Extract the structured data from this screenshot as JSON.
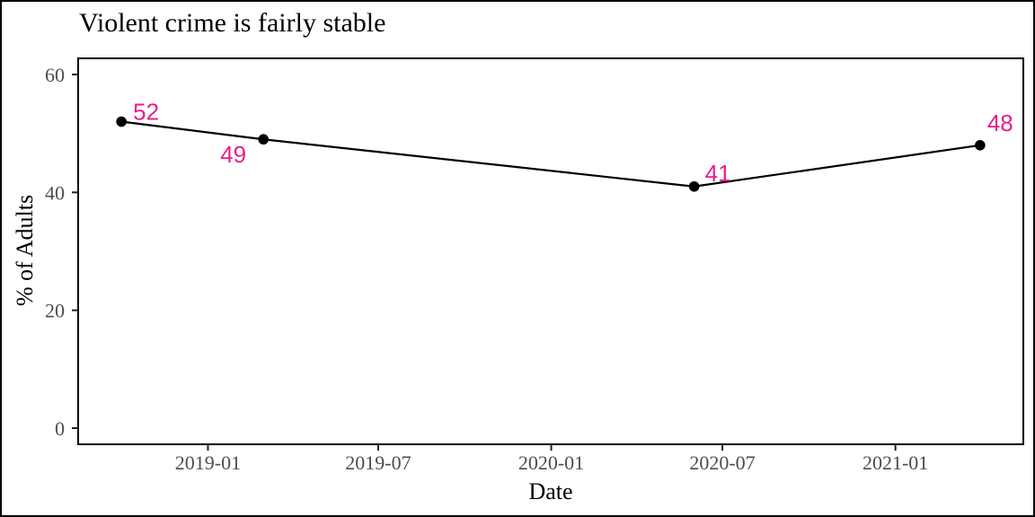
{
  "figure": {
    "background": "#ffffff",
    "border_color": "#000000"
  },
  "chart_data": {
    "type": "line",
    "title": "Violent crime is fairly stable",
    "xlabel": "Date",
    "ylabel": "% of Adults",
    "grid": false,
    "legend": "none",
    "points": [
      {
        "date": "2018-10-01",
        "value": 52,
        "label": "52",
        "label_offset": [
          13,
          -2
        ]
      },
      {
        "date": "2019-03-01",
        "value": 49,
        "label": "49",
        "label_offset": [
          -48,
          26
        ]
      },
      {
        "date": "2020-06-01",
        "value": 41,
        "label": "41",
        "label_offset": [
          12,
          -6
        ]
      },
      {
        "date": "2021-04-01",
        "value": 48,
        "label": "48",
        "label_offset": [
          8,
          -16
        ]
      }
    ],
    "x_ticks": [
      {
        "date": "2019-01-01",
        "label": "2019-01"
      },
      {
        "date": "2019-07-01",
        "label": "2019-07"
      },
      {
        "date": "2020-01-01",
        "label": "2020-01"
      },
      {
        "date": "2020-07-01",
        "label": "2020-07"
      },
      {
        "date": "2021-01-01",
        "label": "2021-01"
      }
    ],
    "y_ticks": [
      {
        "value": 0,
        "label": "0"
      },
      {
        "value": 20,
        "label": "20"
      },
      {
        "value": 40,
        "label": "40"
      },
      {
        "value": 60,
        "label": "60"
      }
    ],
    "x_domain": [
      "2018-08-16",
      "2021-05-17"
    ],
    "y_domain": [
      -2.74,
      62.74
    ],
    "colors": {
      "line": "#000000",
      "point": "#000000",
      "point_label": "#E91E8C",
      "tick_label": "#4d4d4d",
      "axis": "#000000",
      "tick_mark": "#1f1f1f"
    }
  }
}
